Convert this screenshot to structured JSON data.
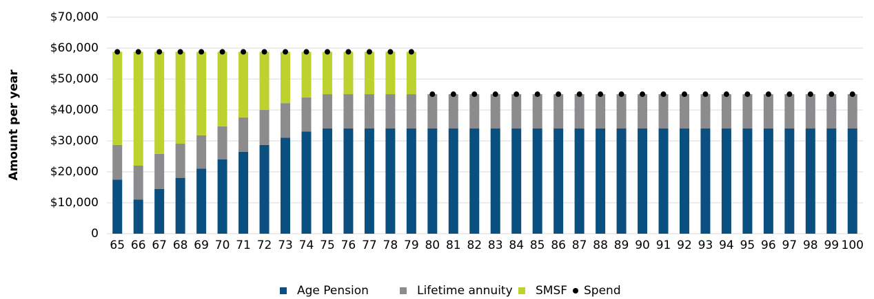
{
  "chart_data": {
    "type": "bar",
    "stacked": true,
    "y_label": "Amount per year",
    "categories": [
      "65",
      "66",
      "67",
      "68",
      "69",
      "70",
      "71",
      "72",
      "73",
      "74",
      "75",
      "76",
      "77",
      "78",
      "79",
      "80",
      "81",
      "82",
      "83",
      "84",
      "85",
      "86",
      "87",
      "88",
      "89",
      "90",
      "91",
      "92",
      "93",
      "94",
      "95",
      "96",
      "97",
      "98",
      "99",
      "100"
    ],
    "series": [
      {
        "name": "Age Pension",
        "type": "bar",
        "color": "#0b4f80",
        "values": [
          17500,
          11000,
          14500,
          18000,
          21000,
          24000,
          26500,
          28700,
          31000,
          33000,
          34000,
          34000,
          34000,
          34000,
          34000,
          34000,
          34000,
          34000,
          34000,
          34000,
          34000,
          34000,
          34000,
          34000,
          34000,
          34000,
          34000,
          34000,
          34000,
          34000,
          34000,
          34000,
          34000,
          34000,
          34000,
          34000
        ]
      },
      {
        "name": "Lifetime annuity",
        "type": "bar",
        "color": "#8c8c8e",
        "values": [
          11200,
          11000,
          11300,
          11100,
          10800,
          10700,
          11100,
          11300,
          11200,
          11000,
          11100,
          11100,
          11100,
          11100,
          11100,
          11100,
          11100,
          11100,
          11100,
          11100,
          11100,
          11100,
          11100,
          11100,
          11100,
          11100,
          11100,
          11100,
          11100,
          11100,
          11100,
          11100,
          11100,
          11100,
          11100,
          11100
        ]
      },
      {
        "name": "SMSF",
        "type": "bar",
        "color": "#bdd12f",
        "values": [
          30100,
          36800,
          33000,
          29700,
          27000,
          24100,
          21200,
          18800,
          16600,
          14800,
          13700,
          13700,
          13700,
          13700,
          13700,
          null,
          null,
          null,
          null,
          null,
          null,
          null,
          null,
          null,
          null,
          null,
          null,
          null,
          null,
          null,
          null,
          null,
          null,
          null,
          null,
          null
        ]
      },
      {
        "name": "Spend",
        "type": "scatter",
        "color": "#000000",
        "values": [
          58800,
          58800,
          58800,
          58800,
          58800,
          58800,
          58800,
          58800,
          58800,
          58800,
          58800,
          58800,
          58800,
          58800,
          58800,
          45100,
          45100,
          45100,
          45100,
          45100,
          45100,
          45100,
          45100,
          45100,
          45100,
          45100,
          45100,
          45100,
          45100,
          45100,
          45100,
          45100,
          45100,
          45100,
          45100,
          45100
        ]
      }
    ],
    "ylim": [
      0,
      70000
    ],
    "yticks": [
      0,
      {
        "value": 10000,
        "label": "$10,000"
      },
      {
        "value": 20000,
        "label": "$20,000"
      },
      {
        "value": 30000,
        "label": "$30,000"
      },
      {
        "value": 40000,
        "label": "$40,000"
      },
      {
        "value": 50000,
        "label": "$50,000"
      },
      {
        "value": 60000,
        "label": "$60,000"
      },
      {
        "value": 70000,
        "label": "$70,000"
      }
    ],
    "grid": true,
    "legend": "bottom"
  }
}
